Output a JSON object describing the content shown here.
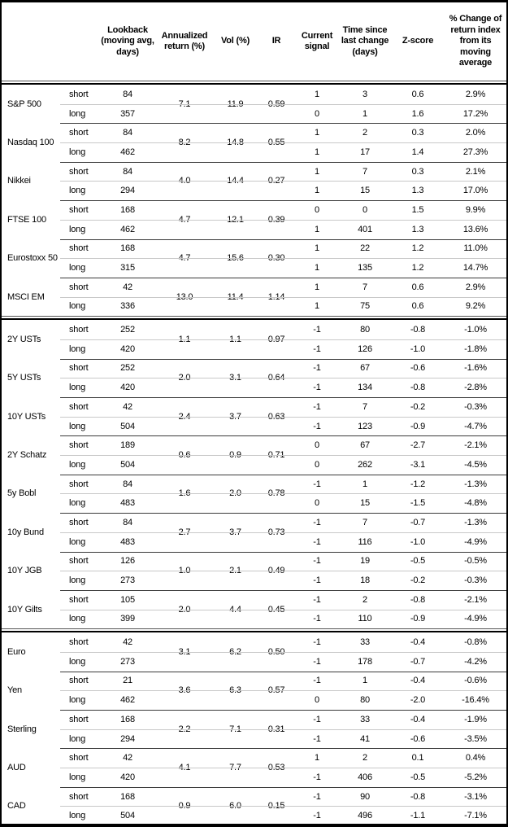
{
  "columns": [
    "Lookback (moving avg, days)",
    "Annualized return (%)",
    "Vol (%)",
    "IR",
    "Current signal",
    "Time since last change (days)",
    "Z-score",
    "% Change of return index from its moving average"
  ],
  "labels": {
    "short": "short",
    "long": "long"
  },
  "sections": [
    {
      "id": "equities",
      "assets": [
        {
          "name": "S&P 500",
          "ann": "7.1",
          "vol": "11.9",
          "ir": "0.59",
          "s": {
            "lb": "84",
            "sig": "1",
            "t": "3",
            "z": "0.6",
            "chg": "2.9%"
          },
          "l": {
            "lb": "357",
            "sig": "0",
            "t": "1",
            "z": "1.6",
            "chg": "17.2%"
          }
        },
        {
          "name": "Nasdaq 100",
          "ann": "8.2",
          "vol": "14.8",
          "ir": "0.55",
          "s": {
            "lb": "84",
            "sig": "1",
            "t": "2",
            "z": "0.3",
            "chg": "2.0%"
          },
          "l": {
            "lb": "462",
            "sig": "1",
            "t": "17",
            "z": "1.4",
            "chg": "27.3%"
          }
        },
        {
          "name": "Nikkei",
          "ann": "4.0",
          "vol": "14.4",
          "ir": "0.27",
          "s": {
            "lb": "84",
            "sig": "1",
            "t": "7",
            "z": "0.3",
            "chg": "2.1%"
          },
          "l": {
            "lb": "294",
            "sig": "1",
            "t": "15",
            "z": "1.3",
            "chg": "17.0%"
          }
        },
        {
          "name": "FTSE 100",
          "ann": "4.7",
          "vol": "12.1",
          "ir": "0.39",
          "s": {
            "lb": "168",
            "sig": "0",
            "t": "0",
            "z": "1.5",
            "chg": "9.9%"
          },
          "l": {
            "lb": "462",
            "sig": "1",
            "t": "401",
            "z": "1.3",
            "chg": "13.6%"
          }
        },
        {
          "name": "Eurostoxx 50",
          "ann": "4.7",
          "vol": "15.6",
          "ir": "0.30",
          "s": {
            "lb": "168",
            "sig": "1",
            "t": "22",
            "z": "1.2",
            "chg": "11.0%"
          },
          "l": {
            "lb": "315",
            "sig": "1",
            "t": "135",
            "z": "1.2",
            "chg": "14.7%"
          }
        },
        {
          "name": "MSCI EM",
          "ann": "13.0",
          "vol": "11.4",
          "ir": "1.14",
          "s": {
            "lb": "42",
            "sig": "1",
            "t": "7",
            "z": "0.6",
            "chg": "2.9%"
          },
          "l": {
            "lb": "336",
            "sig": "1",
            "t": "75",
            "z": "0.6",
            "chg": "9.2%"
          }
        }
      ]
    },
    {
      "id": "bonds",
      "assets": [
        {
          "name": "2Y USTs",
          "ann": "1.1",
          "vol": "1.1",
          "ir": "0.97",
          "s": {
            "lb": "252",
            "sig": "-1",
            "t": "80",
            "z": "-0.8",
            "chg": "-1.0%"
          },
          "l": {
            "lb": "420",
            "sig": "-1",
            "t": "126",
            "z": "-1.0",
            "chg": "-1.8%"
          }
        },
        {
          "name": "5Y USTs",
          "ann": "2.0",
          "vol": "3.1",
          "ir": "0.64",
          "s": {
            "lb": "252",
            "sig": "-1",
            "t": "67",
            "z": "-0.6",
            "chg": "-1.6%"
          },
          "l": {
            "lb": "420",
            "sig": "-1",
            "t": "134",
            "z": "-0.8",
            "chg": "-2.8%"
          }
        },
        {
          "name": "10Y USTs",
          "ann": "2.4",
          "vol": "3.7",
          "ir": "0.63",
          "s": {
            "lb": "42",
            "sig": "-1",
            "t": "7",
            "z": "-0.2",
            "chg": "-0.3%"
          },
          "l": {
            "lb": "504",
            "sig": "-1",
            "t": "123",
            "z": "-0.9",
            "chg": "-4.7%"
          }
        },
        {
          "name": "2Y Schatz",
          "ann": "0.6",
          "vol": "0.9",
          "ir": "0.71",
          "s": {
            "lb": "189",
            "sig": "0",
            "t": "67",
            "z": "-2.7",
            "chg": "-2.1%"
          },
          "l": {
            "lb": "504",
            "sig": "0",
            "t": "262",
            "z": "-3.1",
            "chg": "-4.5%"
          }
        },
        {
          "name": "5y Bobl",
          "ann": "1.6",
          "vol": "2.0",
          "ir": "0.78",
          "s": {
            "lb": "84",
            "sig": "-1",
            "t": "1",
            "z": "-1.2",
            "chg": "-1.3%"
          },
          "l": {
            "lb": "483",
            "sig": "0",
            "t": "15",
            "z": "-1.5",
            "chg": "-4.8%"
          }
        },
        {
          "name": "10y Bund",
          "ann": "2.7",
          "vol": "3.7",
          "ir": "0.73",
          "s": {
            "lb": "84",
            "sig": "-1",
            "t": "7",
            "z": "-0.7",
            "chg": "-1.3%"
          },
          "l": {
            "lb": "483",
            "sig": "-1",
            "t": "116",
            "z": "-1.0",
            "chg": "-4.9%"
          }
        },
        {
          "name": "10Y JGB",
          "ann": "1.0",
          "vol": "2.1",
          "ir": "0.49",
          "s": {
            "lb": "126",
            "sig": "-1",
            "t": "19",
            "z": "-0.5",
            "chg": "-0.5%"
          },
          "l": {
            "lb": "273",
            "sig": "-1",
            "t": "18",
            "z": "-0.2",
            "chg": "-0.3%"
          }
        },
        {
          "name": "10Y Gilts",
          "ann": "2.0",
          "vol": "4.4",
          "ir": "0.45",
          "s": {
            "lb": "105",
            "sig": "-1",
            "t": "2",
            "z": "-0.8",
            "chg": "-2.1%"
          },
          "l": {
            "lb": "399",
            "sig": "-1",
            "t": "110",
            "z": "-0.9",
            "chg": "-4.9%"
          }
        }
      ]
    },
    {
      "id": "currencies",
      "assets": [
        {
          "name": "Euro",
          "ann": "3.1",
          "vol": "6.2",
          "ir": "0.50",
          "s": {
            "lb": "42",
            "sig": "-1",
            "t": "33",
            "z": "-0.4",
            "chg": "-0.8%"
          },
          "l": {
            "lb": "273",
            "sig": "-1",
            "t": "178",
            "z": "-0.7",
            "chg": "-4.2%"
          }
        },
        {
          "name": "Yen",
          "ann": "3.6",
          "vol": "6.3",
          "ir": "0.57",
          "s": {
            "lb": "21",
            "sig": "-1",
            "t": "1",
            "z": "-0.4",
            "chg": "-0.6%"
          },
          "l": {
            "lb": "462",
            "sig": "0",
            "t": "80",
            "z": "-2.0",
            "chg": "-16.4%"
          }
        },
        {
          "name": "Sterling",
          "ann": "2.2",
          "vol": "7.1",
          "ir": "0.31",
          "s": {
            "lb": "168",
            "sig": "-1",
            "t": "33",
            "z": "-0.4",
            "chg": "-1.9%"
          },
          "l": {
            "lb": "294",
            "sig": "-1",
            "t": "41",
            "z": "-0.6",
            "chg": "-3.5%"
          }
        },
        {
          "name": "AUD",
          "ann": "4.1",
          "vol": "7.7",
          "ir": "0.53",
          "s": {
            "lb": "42",
            "sig": "1",
            "t": "2",
            "z": "0.1",
            "chg": "0.4%"
          },
          "l": {
            "lb": "420",
            "sig": "-1",
            "t": "406",
            "z": "-0.5",
            "chg": "-5.2%"
          }
        },
        {
          "name": "CAD",
          "ann": "0.9",
          "vol": "6.0",
          "ir": "0.15",
          "s": {
            "lb": "168",
            "sig": "-1",
            "t": "90",
            "z": "-0.8",
            "chg": "-3.1%"
          },
          "l": {
            "lb": "504",
            "sig": "-1",
            "t": "496",
            "z": "-1.1",
            "chg": "-7.1%"
          }
        }
      ]
    }
  ]
}
